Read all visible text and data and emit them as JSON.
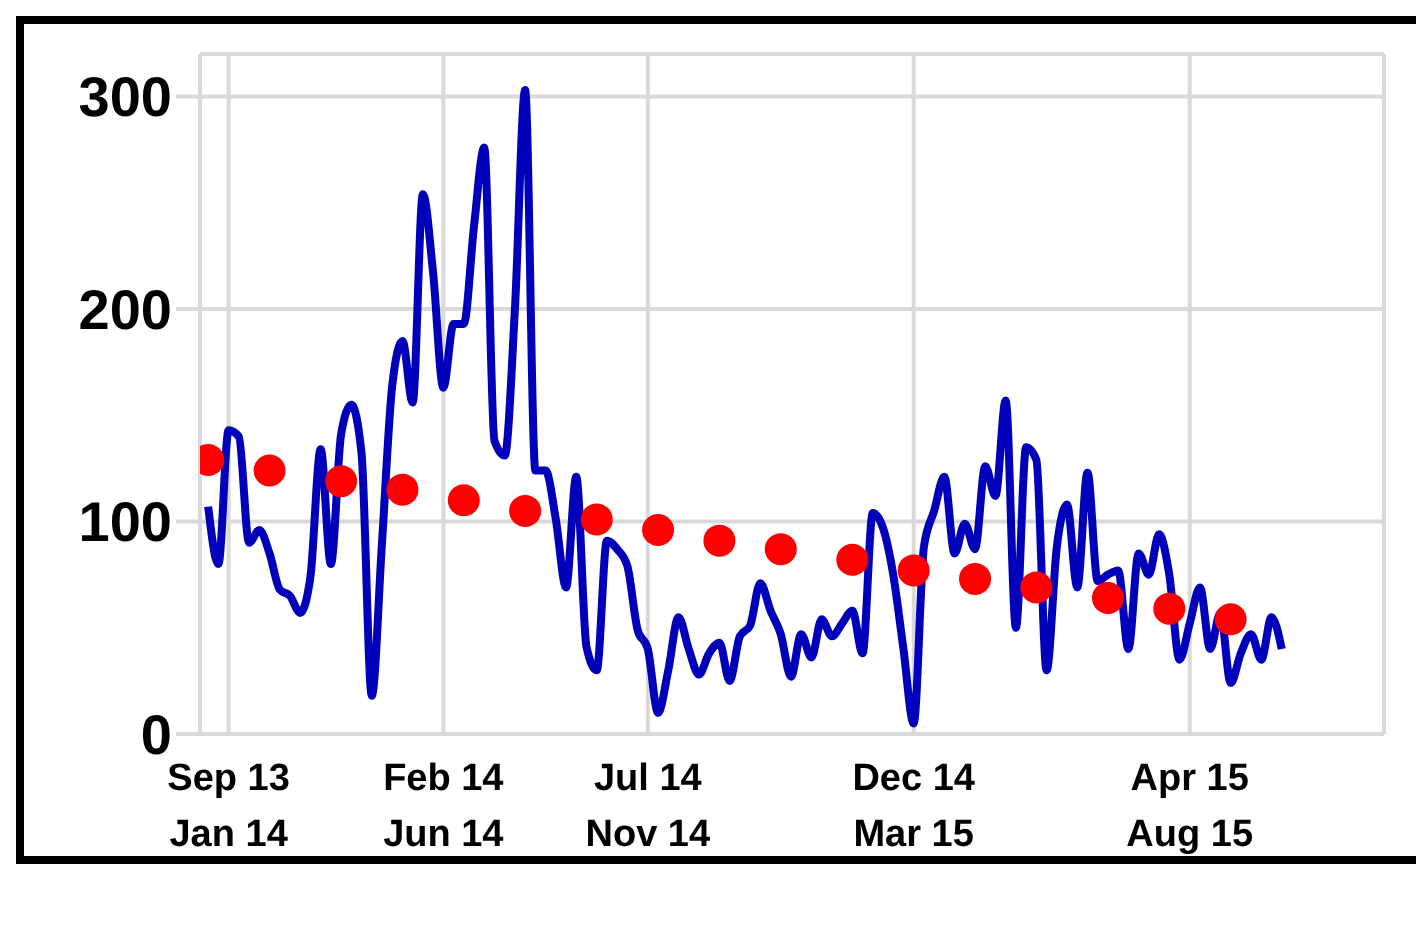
{
  "chart_data": {
    "type": "line",
    "ylim": [
      0,
      320
    ],
    "yticks": [
      0,
      100,
      200,
      300
    ],
    "grid": true,
    "legend": false,
    "categories": [
      null,
      null,
      "Sep 13 Jan 14",
      null,
      null,
      null,
      null,
      null,
      null,
      null,
      null,
      null,
      null,
      null,
      null,
      null,
      null,
      null,
      null,
      null,
      null,
      null,
      null,
      "Feb 14 Jun 14",
      null,
      null,
      null,
      null,
      null,
      null,
      null,
      null,
      null,
      null,
      null,
      null,
      null,
      null,
      null,
      null,
      null,
      null,
      null,
      "Jul 14 Nov 14",
      null,
      null,
      null,
      null,
      null,
      null,
      null,
      null,
      null,
      null,
      null,
      null,
      null,
      null,
      null,
      null,
      null,
      null,
      null,
      null,
      null,
      null,
      null,
      null,
      null,
      "Dec 14 Mar 15",
      null,
      null,
      null,
      null,
      null,
      null,
      null,
      null,
      null,
      null,
      null,
      null,
      null,
      null,
      null,
      null,
      null,
      null,
      null,
      null,
      null,
      null,
      null,
      null,
      null,
      null,
      "Apr 15 Aug 15",
      null,
      null,
      null,
      null,
      null,
      null,
      null,
      null,
      null
    ],
    "series": [
      {
        "color": "#0000bb",
        "values": [
          107,
          80,
          143,
          140,
          90,
          96,
          85,
          68,
          65,
          57,
          74,
          134,
          80,
          141,
          155,
          132,
          18,
          90,
          164,
          185,
          156,
          254,
          217,
          163,
          193,
          193,
          239,
          276,
          138,
          131,
          200,
          303,
          124,
          124,
          101,
          69,
          121,
          41,
          30,
          91,
          87,
          79,
          49,
          40,
          10,
          30,
          55,
          40,
          28,
          38,
          43,
          25,
          46,
          51,
          71,
          58,
          47,
          27,
          47,
          36,
          54,
          46,
          52,
          58,
          38,
          104,
          97,
          75,
          40,
          5,
          88,
          105,
          121,
          85,
          99,
          87,
          126,
          112,
          157,
          50,
          135,
          129,
          30,
          88,
          108,
          69,
          123,
          72,
          75,
          77,
          40,
          85,
          75,
          94,
          75,
          35,
          52,
          69,
          40,
          57,
          24,
          38,
          47,
          35,
          55,
          40
        ]
      },
      {
        "type": "scatter",
        "color": "#ff0000",
        "values": [
          129,
          null,
          null,
          null,
          null,
          null,
          124,
          null,
          null,
          null,
          null,
          null,
          null,
          119,
          null,
          null,
          null,
          null,
          null,
          115,
          null,
          null,
          null,
          null,
          null,
          110,
          null,
          null,
          null,
          null,
          null,
          105,
          null,
          null,
          null,
          null,
          null,
          null,
          101,
          null,
          null,
          null,
          null,
          null,
          96,
          null,
          null,
          null,
          null,
          null,
          91,
          null,
          null,
          null,
          null,
          null,
          87,
          null,
          null,
          null,
          null,
          null,
          null,
          82,
          null,
          null,
          null,
          null,
          null,
          77,
          null,
          null,
          null,
          null,
          null,
          73,
          null,
          null,
          null,
          null,
          null,
          69,
          null,
          null,
          null,
          null,
          null,
          null,
          64,
          null,
          null,
          null,
          null,
          null,
          59,
          null,
          null,
          null,
          null,
          null,
          54,
          null,
          null,
          null,
          null,
          null
        ]
      }
    ]
  }
}
